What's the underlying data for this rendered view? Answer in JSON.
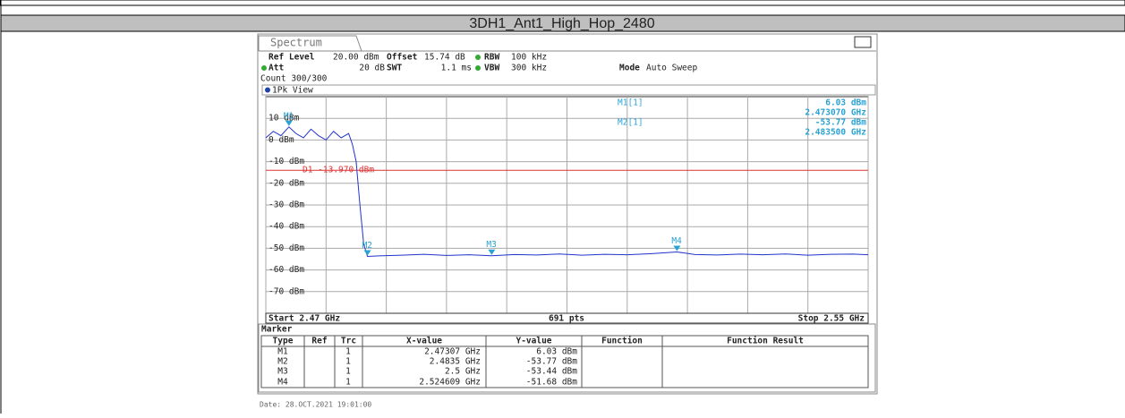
{
  "header": {
    "title": "3DH1_Ant1_High_Hop_2480"
  },
  "window": {
    "tab": "Spectrum",
    "settings": {
      "ref_level_label": "Ref Level",
      "ref_level": "20.00 dBm",
      "offset_label": "Offset",
      "offset": "15.74 dB",
      "rbw_label": "RBW",
      "rbw": "100 kHz",
      "att_label": "Att",
      "att": "20 dB",
      "swt_label": "SWT",
      "swt": "1.1 ms",
      "vbw_label": "VBW",
      "vbw": "300 kHz",
      "mode_label": "Mode",
      "mode": "Auto Sweep",
      "count": "Count 300/300"
    },
    "view": "1Pk View",
    "readouts": [
      {
        "name": "M1[1]",
        "level": "6.03 dBm",
        "freq": "2.473070 GHz"
      },
      {
        "name": "M2[1]",
        "level": "-53.77 dBm",
        "freq": "2.483500 GHz"
      }
    ],
    "start": "Start 2.47 GHz",
    "points": "691 pts",
    "stop": "Stop 2.55 GHz",
    "marker_title": "Marker",
    "marker_table": {
      "columns": [
        "Type",
        "Ref",
        "Trc",
        "X-value",
        "Y-value",
        "Function",
        "Function Result"
      ],
      "rows": [
        [
          "M1",
          "1",
          "2.47307 GHz",
          "6.03 dBm"
        ],
        [
          "M2",
          "1",
          "2.4835 GHz",
          "-53.77 dBm"
        ],
        [
          "M3",
          "1",
          "2.5 GHz",
          "-53.44 dBm"
        ],
        [
          "M4",
          "1",
          "2.524609 GHz",
          "-51.68 dBm"
        ]
      ]
    },
    "date": "Date: 28.OCT.2021  19:01:00"
  },
  "chart_data": {
    "type": "line",
    "color": "#2233cc",
    "xlim": [
      2.47,
      2.55
    ],
    "ylim": [
      -80,
      20
    ],
    "yticks": [
      {
        "value": 10,
        "label": "10 dBm"
      },
      {
        "value": 0,
        "label": "0 dBm"
      },
      {
        "value": -10,
        "label": "-10 dBm"
      },
      {
        "value": -20,
        "label": "-20 dBm"
      },
      {
        "value": -30,
        "label": "-30 dBm"
      },
      {
        "value": -40,
        "label": "-40 dBm"
      },
      {
        "value": -50,
        "label": "-50 dBm"
      },
      {
        "value": -60,
        "label": "-60 dBm"
      },
      {
        "value": -70,
        "label": "-70 dBm"
      }
    ],
    "xticks": [
      2.47,
      2.478,
      2.486,
      2.494,
      2.502,
      2.51,
      2.518,
      2.526,
      2.534,
      2.542,
      2.55
    ],
    "grid": true,
    "display_line": {
      "label": "D1 -13.970 dBm",
      "value": -13.97,
      "color": "#dd3333"
    },
    "markers": [
      {
        "name": "M1",
        "x": 2.47307,
        "y": 6.03
      },
      {
        "name": "M2",
        "x": 2.4835,
        "y": -53.77
      },
      {
        "name": "M3",
        "x": 2.5,
        "y": -53.44
      },
      {
        "name": "M4",
        "x": 2.524609,
        "y": -51.68
      }
    ],
    "x": [
      2.47,
      2.471,
      2.472,
      2.47307,
      2.474,
      2.475,
      2.476,
      2.477,
      2.478,
      2.479,
      2.48,
      2.481,
      2.4815,
      2.482,
      2.4825,
      2.483,
      2.4835,
      2.485,
      2.488,
      2.491,
      2.494,
      2.497,
      2.5,
      2.503,
      2.506,
      2.509,
      2.512,
      2.515,
      2.518,
      2.521,
      2.524609,
      2.527,
      2.53,
      2.533,
      2.536,
      2.539,
      2.542,
      2.545,
      2.548,
      2.55
    ],
    "values": [
      1,
      4,
      2,
      6.03,
      3,
      1,
      5,
      2,
      0,
      4,
      1,
      3,
      -2,
      -10,
      -30,
      -48,
      -53.77,
      -53.5,
      -53.2,
      -52.8,
      -53.3,
      -53,
      -53.44,
      -52.9,
      -53.1,
      -52.6,
      -53.2,
      -52.8,
      -53,
      -52.5,
      -51.68,
      -52.9,
      -53.1,
      -52.7,
      -53,
      -52.6,
      -53.2,
      -52.8,
      -52.7,
      -53
    ]
  }
}
